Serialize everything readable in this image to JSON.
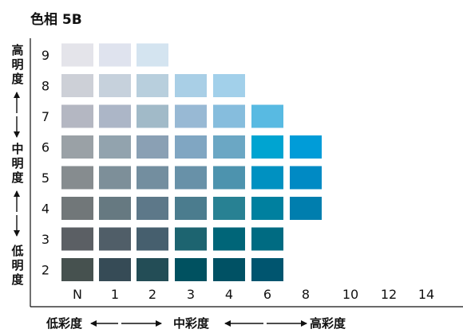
{
  "title": "色相 5B",
  "value_axis": {
    "high_label": [
      "高",
      "明",
      "度"
    ],
    "mid_label": [
      "中",
      "明",
      "度"
    ],
    "low_label": [
      "低",
      "明",
      "度"
    ]
  },
  "chroma_axis": {
    "low_label": "低彩度",
    "mid_label": "中彩度",
    "high_label": "高彩度"
  },
  "chart_data": {
    "type": "heatmap",
    "title": "色相 5B",
    "x_categories": [
      "N",
      "1",
      "2",
      "3",
      "4",
      "6",
      "8",
      "10",
      "12",
      "14"
    ],
    "y_categories": [
      "9",
      "8",
      "7",
      "6",
      "5",
      "4",
      "3",
      "2"
    ],
    "cells": [
      {
        "value": "9",
        "chroma": "N",
        "color": "#e4e4ea"
      },
      {
        "value": "9",
        "chroma": "1",
        "color": "#dfe3ee"
      },
      {
        "value": "9",
        "chroma": "2",
        "color": "#d4e4f0"
      },
      {
        "value": "8",
        "chroma": "N",
        "color": "#cdd0d7"
      },
      {
        "value": "8",
        "chroma": "1",
        "color": "#c6d1dc"
      },
      {
        "value": "8",
        "chroma": "2",
        "color": "#b8cfdd"
      },
      {
        "value": "8",
        "chroma": "3",
        "color": "#a9cfe6"
      },
      {
        "value": "8",
        "chroma": "4",
        "color": "#a2d0ea"
      },
      {
        "value": "7",
        "chroma": "N",
        "color": "#b4b7c2"
      },
      {
        "value": "7",
        "chroma": "1",
        "color": "#acb6c7"
      },
      {
        "value": "7",
        "chroma": "2",
        "color": "#a1bac8"
      },
      {
        "value": "7",
        "chroma": "3",
        "color": "#98b9d4"
      },
      {
        "value": "7",
        "chroma": "4",
        "color": "#86bddd"
      },
      {
        "value": "7",
        "chroma": "6",
        "color": "#58bae2"
      },
      {
        "value": "6",
        "chroma": "N",
        "color": "#9aa1a6"
      },
      {
        "value": "6",
        "chroma": "1",
        "color": "#92a3ae"
      },
      {
        "value": "6",
        "chroma": "2",
        "color": "#8aa0b4"
      },
      {
        "value": "6",
        "chroma": "3",
        "color": "#80a6c2"
      },
      {
        "value": "6",
        "chroma": "4",
        "color": "#6ba7c4"
      },
      {
        "value": "6",
        "chroma": "6",
        "color": "#00a4d1"
      },
      {
        "value": "6",
        "chroma": "8",
        "color": "#009cd8"
      },
      {
        "value": "5",
        "chroma": "N",
        "color": "#868c8f"
      },
      {
        "value": "5",
        "chroma": "1",
        "color": "#7d8f99"
      },
      {
        "value": "5",
        "chroma": "2",
        "color": "#738e9f"
      },
      {
        "value": "5",
        "chroma": "3",
        "color": "#6891a8"
      },
      {
        "value": "5",
        "chroma": "4",
        "color": "#4d93ae"
      },
      {
        "value": "5",
        "chroma": "6",
        "color": "#0091c1"
      },
      {
        "value": "5",
        "chroma": "8",
        "color": "#008ac4"
      },
      {
        "value": "4",
        "chroma": "N",
        "color": "#717779"
      },
      {
        "value": "4",
        "chroma": "1",
        "color": "#667981"
      },
      {
        "value": "4",
        "chroma": "2",
        "color": "#5d7889"
      },
      {
        "value": "4",
        "chroma": "3",
        "color": "#4b7c8e"
      },
      {
        "value": "4",
        "chroma": "4",
        "color": "#288193"
      },
      {
        "value": "4",
        "chroma": "6",
        "color": "#00809f"
      },
      {
        "value": "4",
        "chroma": "8",
        "color": "#007eae"
      },
      {
        "value": "3",
        "chroma": "N",
        "color": "#5b5f64"
      },
      {
        "value": "3",
        "chroma": "1",
        "color": "#505e68"
      },
      {
        "value": "3",
        "chroma": "2",
        "color": "#465f6e"
      },
      {
        "value": "3",
        "chroma": "3",
        "color": "#1d6470"
      },
      {
        "value": "3",
        "chroma": "4",
        "color": "#006578"
      },
      {
        "value": "3",
        "chroma": "6",
        "color": "#006b82"
      },
      {
        "value": "2",
        "chroma": "N",
        "color": "#46514f"
      },
      {
        "value": "2",
        "chroma": "1",
        "color": "#364b56"
      },
      {
        "value": "2",
        "chroma": "2",
        "color": "#234d56"
      },
      {
        "value": "2",
        "chroma": "3",
        "color": "#005160"
      },
      {
        "value": "2",
        "chroma": "4",
        "color": "#005164"
      },
      {
        "value": "2",
        "chroma": "6",
        "color": "#00556f"
      }
    ]
  }
}
